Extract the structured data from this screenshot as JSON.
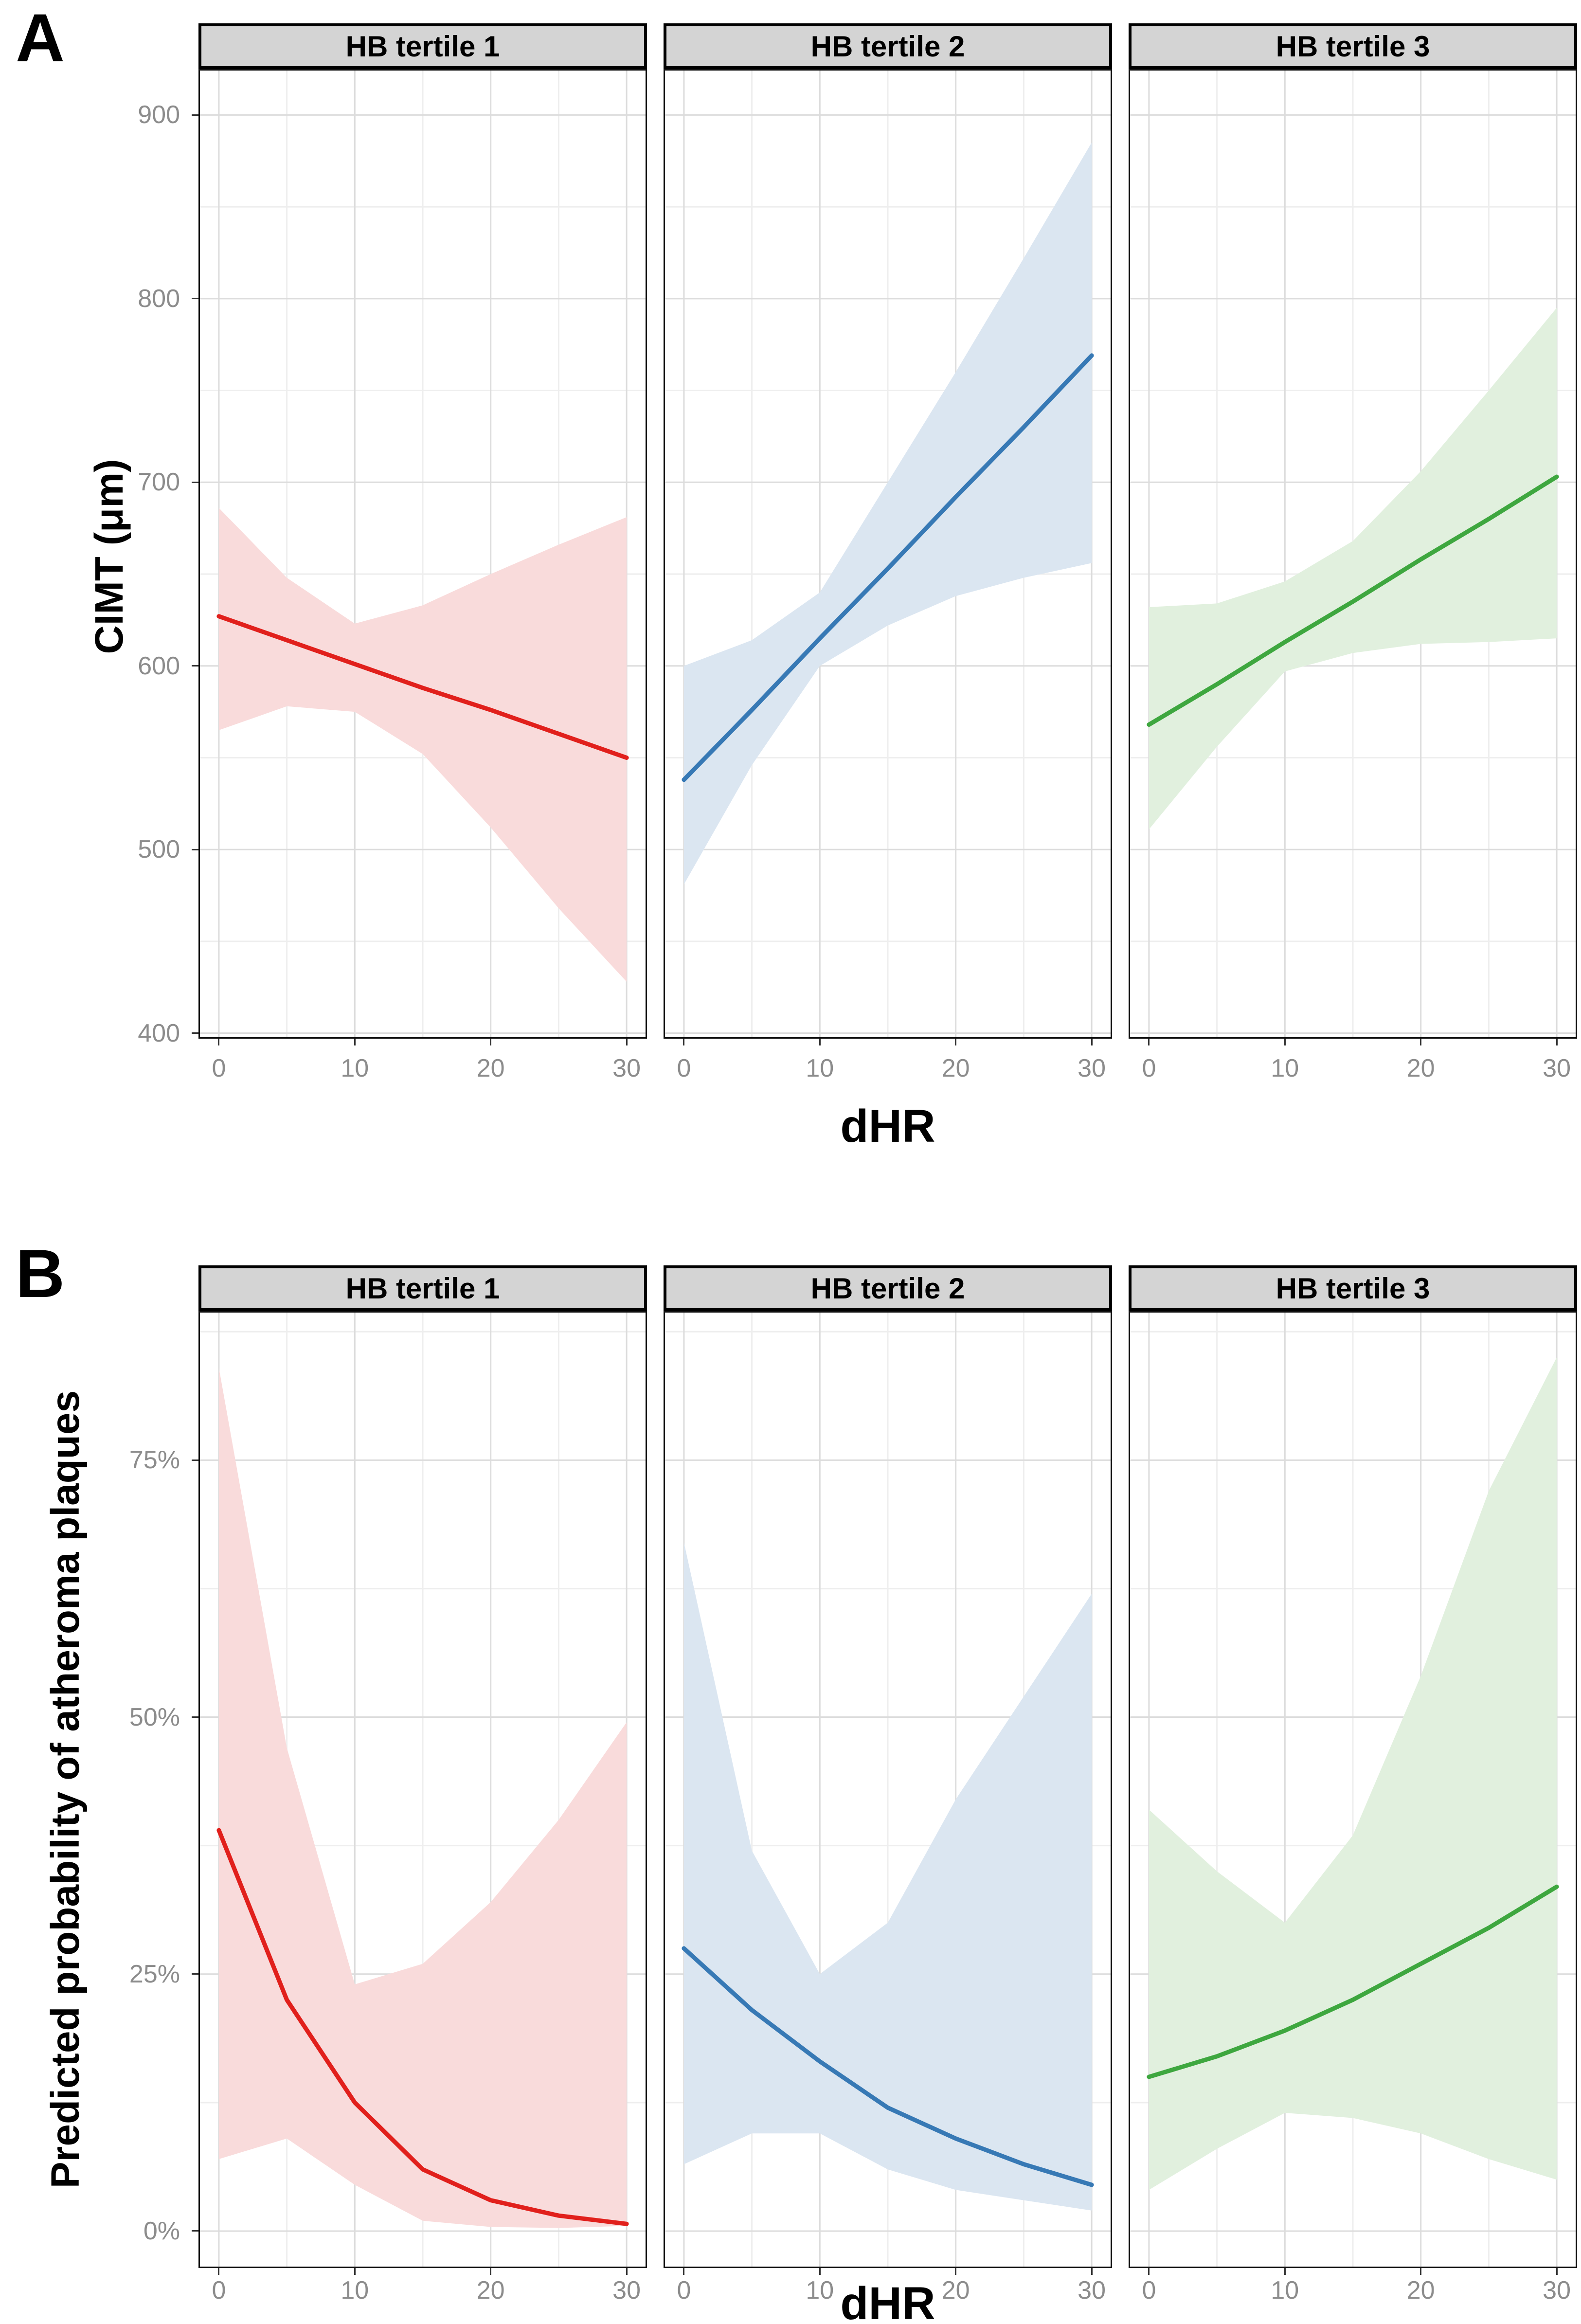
{
  "chart_data": [
    {
      "id": "A",
      "panel_label": "A",
      "type": "line",
      "title": "",
      "xlabel": "dHR",
      "ylabel": "CIMT (μm)",
      "x_ticks": [
        0,
        10,
        20,
        30
      ],
      "x_minor": [
        5,
        15,
        25
      ],
      "xlim": [
        -1.5,
        31.5
      ],
      "y_ticks": [
        900,
        800,
        700,
        600,
        500,
        400
      ],
      "y_tick_labels": [
        "900",
        "800",
        "700",
        "600",
        "500",
        "400"
      ],
      "y_minor": [
        850,
        750,
        650,
        550,
        450
      ],
      "ylim": [
        397,
        925
      ],
      "grid": true,
      "legend": "none",
      "x": [
        0,
        5,
        10,
        15,
        20,
        25,
        30
      ],
      "facets": [
        {
          "label": "HB tertile 1",
          "color": "#e1201c",
          "ribbon_color": "#f9dbdb",
          "line": [
            627,
            614,
            601,
            588,
            576,
            563,
            550
          ],
          "upper": [
            686,
            648,
            623,
            633,
            650,
            666,
            681
          ],
          "lower": [
            565,
            578,
            575,
            552,
            512,
            468,
            428
          ]
        },
        {
          "label": "HB tertile 2",
          "color": "#3779b5",
          "ribbon_color": "#dbe6f1",
          "line": [
            538,
            576,
            615,
            653,
            692,
            730,
            769
          ],
          "upper": [
            600,
            614,
            640,
            700,
            760,
            822,
            885
          ],
          "lower": [
            481,
            546,
            600,
            622,
            638,
            648,
            656
          ]
        },
        {
          "label": "HB tertile 3",
          "color": "#3ea73f",
          "ribbon_color": "#e1f0de",
          "line": [
            568,
            590,
            613,
            635,
            658,
            680,
            703
          ],
          "upper": [
            632,
            634,
            646,
            668,
            706,
            750,
            795
          ],
          "lower": [
            511,
            556,
            597,
            607,
            612,
            613,
            615
          ]
        }
      ]
    },
    {
      "id": "B",
      "panel_label": "B",
      "type": "line",
      "title": "",
      "xlabel": "dHR",
      "ylabel": "Predicted probability of atheroma plaques",
      "x_ticks": [
        0,
        10,
        20,
        30
      ],
      "x_minor": [
        5,
        15,
        25
      ],
      "xlim": [
        -1.5,
        31.5
      ],
      "y_ticks": [
        75,
        50,
        25,
        0
      ],
      "y_tick_labels": [
        "75%",
        "50%",
        "25%",
        "0%"
      ],
      "y_minor": [
        87.5,
        62.5,
        37.5,
        12.5
      ],
      "ylim": [
        -3.6,
        89.5
      ],
      "grid": true,
      "legend": "none",
      "x": [
        0,
        5,
        10,
        15,
        20,
        25,
        30
      ],
      "facets": [
        {
          "label": "HB tertile 1",
          "color": "#e1201c",
          "ribbon_color": "#f9dbdb",
          "line": [
            39,
            22.5,
            12.5,
            6,
            3,
            1.5,
            0.7
          ],
          "upper": [
            84,
            47,
            24,
            26,
            32,
            40,
            49.5
          ],
          "lower": [
            7,
            9,
            4.5,
            1,
            0.4,
            0.3,
            0.5
          ]
        },
        {
          "label": "HB tertile 2",
          "color": "#3779b5",
          "ribbon_color": "#dbe6f1",
          "line": [
            27.5,
            21.5,
            16.5,
            12,
            9,
            6.5,
            4.5
          ],
          "upper": [
            67,
            37,
            25,
            30,
            42,
            52,
            62
          ],
          "lower": [
            6.5,
            9.5,
            9.5,
            6,
            4,
            3,
            2
          ]
        },
        {
          "label": "HB tertile 3",
          "color": "#3ea73f",
          "ribbon_color": "#e1f0de",
          "line": [
            15,
            17,
            19.5,
            22.5,
            26,
            29.5,
            33.5
          ],
          "upper": [
            41,
            35,
            30,
            38.5,
            54,
            72,
            85
          ],
          "lower": [
            4,
            8,
            11.5,
            11,
            9.5,
            7,
            5
          ]
        }
      ]
    }
  ]
}
